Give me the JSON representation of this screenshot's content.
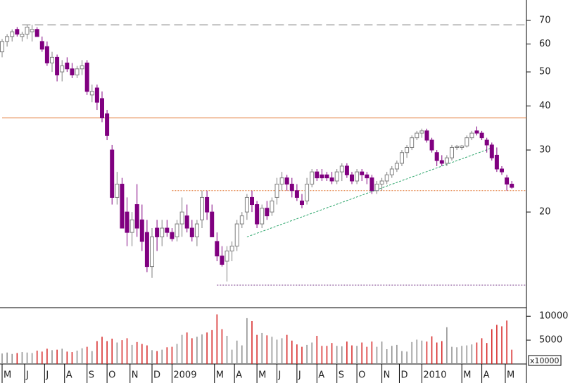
{
  "chart_data": {
    "type": "candlestick",
    "log": true,
    "ylim": [
      10.7,
      80
    ],
    "yticks": [
      20,
      30,
      40,
      50,
      60,
      70
    ],
    "y2lim": [
      0,
      11800
    ],
    "y2ticks": [
      5000,
      10000
    ],
    "volume_unit": "x10000",
    "up_color": "#ffffff",
    "up_edge": "#7f7f7f",
    "down_color": "#800080",
    "volume_up_color": "#8c8c8c",
    "volume_down_color": "#d62020",
    "xticks": [
      {
        "value": 0,
        "label": "M"
      },
      {
        "value": 4.5,
        "label": "J"
      },
      {
        "value": 8.5,
        "label": "J"
      },
      {
        "value": 12.5,
        "label": "A"
      },
      {
        "value": 17,
        "label": "S"
      },
      {
        "value": 21,
        "label": "O"
      },
      {
        "value": 25.6,
        "label": "N"
      },
      {
        "value": 30,
        "label": "D"
      },
      {
        "value": 34,
        "label": "2009"
      },
      {
        "value": 42.5,
        "label": "M"
      },
      {
        "value": 46.5,
        "label": "A"
      },
      {
        "value": 51,
        "label": "M"
      },
      {
        "value": 55,
        "label": "J"
      },
      {
        "value": 59,
        "label": "J"
      },
      {
        "value": 63,
        "label": "A"
      },
      {
        "value": 67,
        "label": "S"
      },
      {
        "value": 71,
        "label": "O"
      },
      {
        "value": 76,
        "label": "N"
      },
      {
        "value": 79.5,
        "label": "D"
      },
      {
        "value": 84,
        "label": "2010"
      },
      {
        "value": 92,
        "label": "M"
      },
      {
        "value": 96,
        "label": "A"
      },
      {
        "value": 100.7,
        "label": "M"
      }
    ],
    "open": [
      57,
      61,
      63,
      66,
      63,
      64,
      65,
      66,
      61,
      59,
      53,
      55,
      50,
      53,
      51,
      49,
      51,
      53,
      43,
      45,
      42,
      38,
      30,
      22,
      24,
      20,
      17.5,
      21,
      19,
      17.5,
      14,
      18,
      17,
      18,
      17.5,
      17,
      18.5,
      19.5,
      18,
      17,
      19,
      22,
      20,
      16.5,
      15,
      14.5,
      15.5,
      16,
      18.5,
      20,
      22,
      21,
      18.5,
      20.5,
      20,
      22,
      24,
      25,
      24,
      23,
      21.5,
      21.5,
      24,
      26,
      25.5,
      25.5,
      25,
      24.5,
      26,
      27,
      25.5,
      24.5,
      26,
      25.5,
      25,
      23,
      24,
      24.5,
      25.5,
      26.5,
      27.5,
      29.5,
      30.5,
      32.5,
      33.5,
      34,
      32,
      29.5,
      28,
      27.5,
      28.5,
      30.5,
      30.5,
      30.8,
      32.5,
      34,
      33.5,
      32,
      31,
      29,
      26.5,
      25,
      24
    ],
    "high": [
      62,
      64,
      66,
      67,
      65,
      68,
      68,
      67,
      63,
      61,
      57,
      56,
      54,
      55,
      53,
      52,
      54,
      54,
      46,
      46,
      44,
      39,
      31,
      26,
      25,
      22,
      20,
      24,
      21,
      19,
      18,
      19,
      19,
      19,
      18,
      19,
      22,
      21,
      19,
      19,
      23,
      23,
      21,
      17.5,
      16,
      16,
      16.5,
      19,
      20,
      22.5,
      23,
      21.5,
      21,
      21.5,
      22,
      25,
      26,
      25.5,
      25,
      24,
      22.5,
      25,
      26.5,
      26.5,
      26.5,
      26,
      26,
      26.5,
      27.5,
      27.5,
      26,
      26.5,
      26.5,
      26,
      25.5,
      24.5,
      25,
      26,
      27,
      28,
      30,
      31,
      33,
      34,
      34.5,
      34.5,
      32.5,
      30,
      29,
      29,
      31,
      31,
      31,
      33,
      34,
      35,
      34,
      32.5,
      31.5,
      30.5,
      27,
      25.5,
      24.5
    ],
    "low": [
      55,
      59,
      61,
      63,
      61,
      62,
      61,
      63,
      57,
      52,
      50,
      47,
      47,
      50,
      48,
      48,
      49,
      43,
      41,
      39,
      36,
      32,
      21,
      21,
      18,
      16,
      16,
      17,
      15.5,
      13.5,
      13,
      15.5,
      16,
      17,
      16.5,
      16.5,
      17,
      17.5,
      16.5,
      16,
      18,
      19,
      17,
      14.5,
      14,
      12.7,
      14.5,
      15.5,
      18,
      19,
      20,
      18,
      18,
      19,
      19.5,
      21,
      23,
      23,
      22,
      21.5,
      20.5,
      21,
      23.5,
      24.5,
      24.5,
      24.5,
      24,
      24,
      24.5,
      25,
      24,
      24,
      24.5,
      24,
      22.5,
      22.5,
      23,
      24,
      25,
      26,
      27,
      28.5,
      30,
      32,
      32.5,
      31.5,
      29.5,
      27,
      27,
      27,
      28,
      30,
      30,
      30.5,
      32,
      33,
      32,
      29.5,
      28,
      26,
      25.5,
      23,
      23.3
    ],
    "close": [
      61,
      63,
      65,
      64,
      64,
      67,
      66,
      63,
      58,
      53,
      55,
      49,
      52,
      51,
      49,
      51,
      52,
      44,
      44,
      41,
      37,
      33,
      22,
      24,
      18,
      17.5,
      19,
      18,
      16.5,
      14,
      17,
      17,
      18,
      17.5,
      16.8,
      18.5,
      20,
      18,
      17,
      18.5,
      22,
      20,
      17,
      15,
      14.2,
      15.5,
      16,
      18.5,
      19.5,
      22,
      21,
      18.5,
      20.5,
      19.5,
      21.5,
      24,
      25,
      24,
      23,
      22,
      21,
      24,
      26,
      25,
      25,
      25,
      24.5,
      26,
      27,
      25.5,
      24.5,
      26,
      25.5,
      25,
      23,
      24,
      24.5,
      25.5,
      26.5,
      27.5,
      29.5,
      30.5,
      32.5,
      33.5,
      34,
      32,
      30,
      28,
      27.5,
      28.5,
      30.5,
      30.7,
      30.8,
      32.5,
      33.5,
      33.5,
      32.5,
      31,
      28.5,
      26.5,
      26,
      24,
      23.5
    ],
    "volume": [
      2200,
      2400,
      2100,
      2300,
      2500,
      2400,
      2300,
      2800,
      2600,
      3200,
      2900,
      3000,
      3200,
      2600,
      2500,
      2800,
      3300,
      3600,
      2700,
      4800,
      5700,
      4800,
      5300,
      4500,
      5000,
      5400,
      4000,
      4600,
      4200,
      3900,
      2900,
      2700,
      3000,
      3500,
      3600,
      4200,
      6100,
      6600,
      5400,
      5700,
      6200,
      6600,
      7100,
      10400,
      7300,
      5900,
      3000,
      4900,
      3900,
      9600,
      9000,
      6100,
      6500,
      6000,
      5700,
      5100,
      5400,
      6100,
      4900,
      4100,
      3600,
      4000,
      4500,
      5900,
      3800,
      3800,
      4400,
      3800,
      3700,
      4700,
      3900,
      3800,
      4500,
      3600,
      4700,
      3600,
      4700,
      3100,
      3800,
      4000,
      2700,
      2600,
      4600,
      5100,
      4900,
      4700,
      5800,
      4500,
      4800,
      7700,
      3600,
      3500,
      3800,
      3900,
      4100,
      4500,
      5400,
      4400,
      7300,
      8200,
      7900,
      9100,
      3000
    ],
    "hlines": [
      {
        "value": 68,
        "from": 4,
        "color": "#777777",
        "style": "dashed"
      },
      {
        "value": 37,
        "from": 0,
        "color": "#e0702a",
        "style": "solid"
      },
      {
        "value": 23,
        "from": 34,
        "color": "#e0702a",
        "style": "dotted"
      },
      {
        "value": 12.4,
        "from": 43,
        "color": "#7a3d8a",
        "style": "dotted"
      }
    ],
    "trendlines": [
      {
        "from": [
          49,
          17
        ],
        "to": [
          98,
          30.4
        ],
        "color": "#2aa56a",
        "style": "dashed"
      }
    ]
  }
}
